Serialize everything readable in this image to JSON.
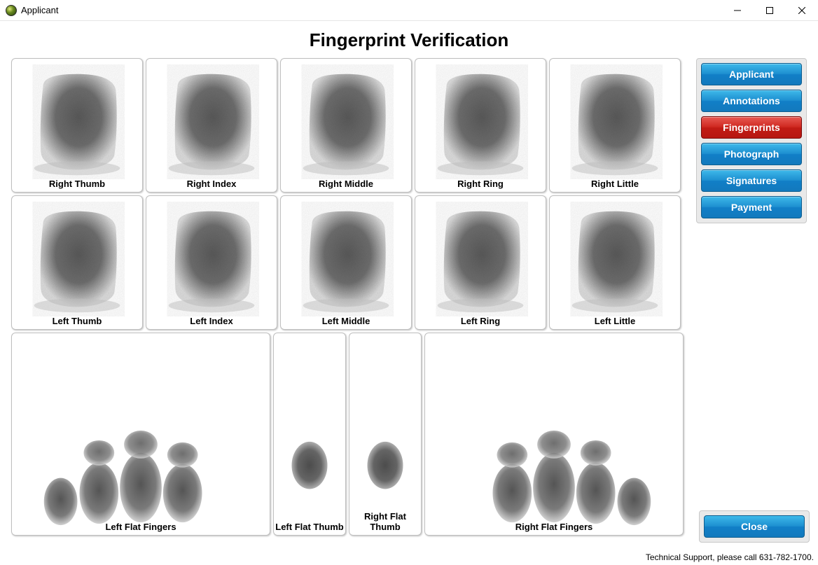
{
  "window": {
    "title": "Applicant"
  },
  "page": {
    "title": "Fingerprint Verification"
  },
  "nav": {
    "items": [
      {
        "label": "Applicant",
        "active": false
      },
      {
        "label": "Annotations",
        "active": false
      },
      {
        "label": "Fingerprints",
        "active": true
      },
      {
        "label": "Photograph",
        "active": false
      },
      {
        "label": "Signatures",
        "active": false
      },
      {
        "label": "Payment",
        "active": false
      }
    ],
    "close_label": "Close"
  },
  "colors": {
    "nav_button_top": "#3eb9ea",
    "nav_button_bot": "#1279bd",
    "nav_border": "#0d5d8f",
    "nav_active_top": "#e85a53",
    "nav_active_bot": "#b71712",
    "nav_active_border": "#7a0b0b",
    "panel_bg": "#e9e9e9",
    "panel_border": "#c8c8c8",
    "card_border": "#bfbfbf"
  },
  "prints": {
    "row1": [
      {
        "label": "Right Thumb"
      },
      {
        "label": "Right Index"
      },
      {
        "label": "Right Middle"
      },
      {
        "label": "Right Ring"
      },
      {
        "label": "Right Little"
      }
    ],
    "row2": [
      {
        "label": "Left Thumb"
      },
      {
        "label": "Left Index"
      },
      {
        "label": "Left Middle"
      },
      {
        "label": "Left Ring"
      },
      {
        "label": "Left Little"
      }
    ],
    "row3": [
      {
        "label": "Left Flat Fingers",
        "kind": "wide"
      },
      {
        "label": "Left Flat Thumb",
        "kind": "narrow"
      },
      {
        "label": "Right Flat Thumb",
        "kind": "narrow"
      },
      {
        "label": "Right Flat Fingers",
        "kind": "wide"
      }
    ]
  },
  "footer": {
    "support": "Technical Support, please call 631-782-1700."
  }
}
